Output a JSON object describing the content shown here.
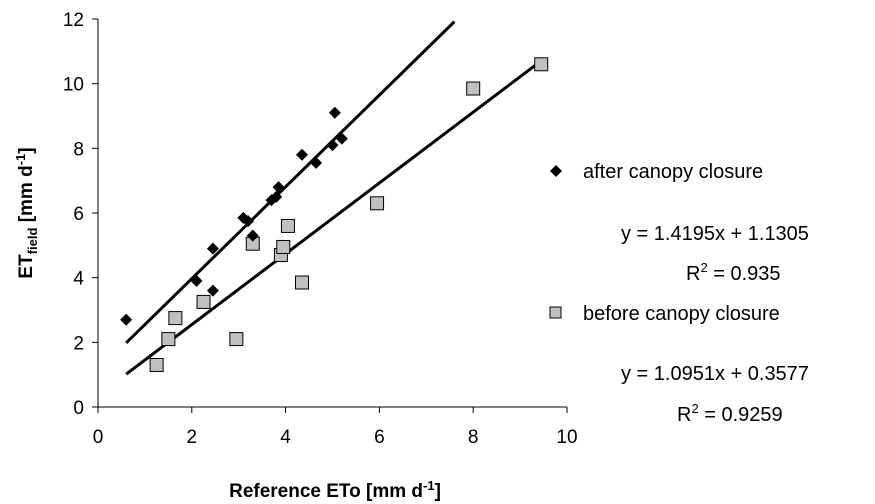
{
  "chart_data": {
    "type": "scatter",
    "xlabel": {
      "main": "Reference ETo [mm d",
      "sup": "-1",
      "tail": "]"
    },
    "ylabel": {
      "main": "ET",
      "sub": "field",
      "tail1": " [mm d",
      "sup": "-1",
      "tail2": "]"
    },
    "xlim": [
      0,
      10
    ],
    "ylim": [
      0,
      12
    ],
    "xticks": [
      0,
      2,
      4,
      6,
      8,
      10
    ],
    "yticks": [
      0,
      2,
      4,
      6,
      8,
      10,
      12
    ],
    "grid": false,
    "legend_position": "right",
    "series": [
      {
        "name": "after canopy closure",
        "marker": "diamond",
        "color": "#000000",
        "equation": "y = 1.4195x + 1.1305",
        "r2_label": "R",
        "r2_sup": "2",
        "r2_value": " = 0.935",
        "trendline": {
          "slope": 1.4195,
          "intercept": 1.1305,
          "x_range": [
            0.6,
            7.6
          ]
        },
        "points": [
          [
            0.6,
            2.7
          ],
          [
            2.1,
            3.9
          ],
          [
            2.45,
            3.6
          ],
          [
            2.45,
            4.9
          ],
          [
            3.1,
            5.85
          ],
          [
            3.2,
            5.75
          ],
          [
            3.3,
            5.3
          ],
          [
            3.7,
            6.4
          ],
          [
            3.8,
            6.5
          ],
          [
            3.85,
            6.8
          ],
          [
            4.35,
            7.8
          ],
          [
            4.65,
            7.55
          ],
          [
            5.0,
            8.1
          ],
          [
            5.05,
            9.1
          ],
          [
            5.2,
            8.3
          ]
        ]
      },
      {
        "name": "before canopy closure",
        "marker": "square",
        "color": "#c0c0c0",
        "equation": "y = 1.0951x + 0.3577",
        "r2_label": "R",
        "r2_sup": "2",
        "r2_value": " = 0.9259",
        "trendline": {
          "slope": 1.0951,
          "intercept": 0.3577,
          "x_range": [
            0.6,
            9.45
          ]
        },
        "points": [
          [
            1.25,
            1.3
          ],
          [
            1.5,
            2.1
          ],
          [
            1.65,
            2.75
          ],
          [
            2.25,
            3.25
          ],
          [
            2.95,
            2.1
          ],
          [
            3.3,
            5.05
          ],
          [
            3.9,
            4.7
          ],
          [
            3.95,
            4.95
          ],
          [
            4.05,
            5.6
          ],
          [
            4.35,
            3.85
          ],
          [
            5.95,
            6.3
          ],
          [
            8.0,
            9.85
          ],
          [
            9.45,
            10.6
          ]
        ]
      }
    ]
  }
}
